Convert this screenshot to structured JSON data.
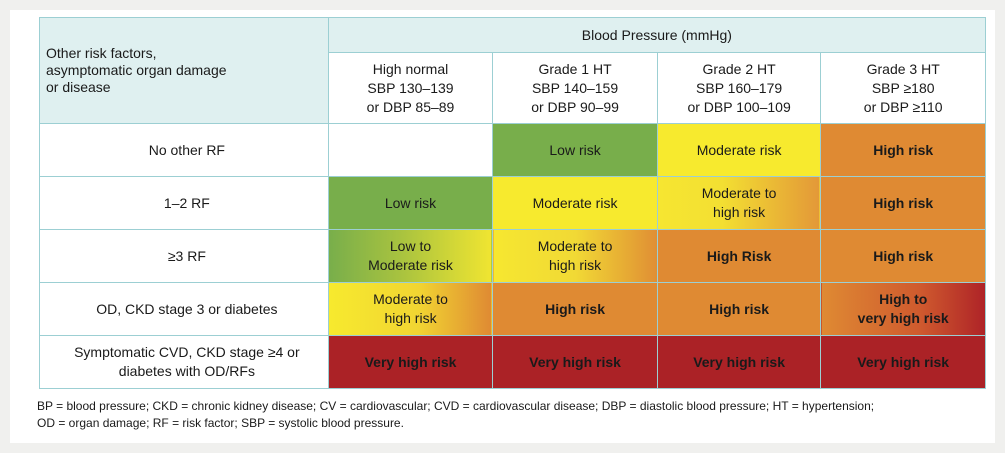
{
  "header": {
    "left_line1": "Other risk factors,",
    "left_line2": "asymptomatic organ damage",
    "left_line3": "or disease",
    "bp_title": "Blood Pressure (mmHg)"
  },
  "grades": [
    {
      "name": "High normal",
      "sbp": "SBP 130–139",
      "dbp": "or DBP 85–89"
    },
    {
      "name": "Grade 1 HT",
      "sbp": "SBP 140–159",
      "dbp": "or DBP 90–99"
    },
    {
      "name": "Grade 2 HT",
      "sbp": "SBP 160–179",
      "dbp": "or DBP 100–109"
    },
    {
      "name": "Grade 3 HT",
      "sbp": "SBP ≥180",
      "dbp": "or DBP ≥110"
    }
  ],
  "rows": [
    {
      "label": "No other RF",
      "cells": [
        {
          "l1": "",
          "l2": ""
        },
        {
          "l1": "Low risk",
          "l2": ""
        },
        {
          "l1": "Moderate risk",
          "l2": ""
        },
        {
          "l1": "High risk",
          "l2": ""
        }
      ]
    },
    {
      "label": "1–2 RF",
      "cells": [
        {
          "l1": "Low risk",
          "l2": ""
        },
        {
          "l1": "Moderate risk",
          "l2": ""
        },
        {
          "l1": "Moderate to",
          "l2": "high risk"
        },
        {
          "l1": "High risk",
          "l2": ""
        }
      ]
    },
    {
      "label": "≥3 RF",
      "cells": [
        {
          "l1": "Low to",
          "l2": "Moderate risk"
        },
        {
          "l1": "Moderate to",
          "l2": "high risk"
        },
        {
          "l1": "High Risk",
          "l2": ""
        },
        {
          "l1": "High risk",
          "l2": ""
        }
      ]
    },
    {
      "label": "OD, CKD stage 3 or diabetes",
      "cells": [
        {
          "l1": "Moderate to",
          "l2": "high risk"
        },
        {
          "l1": "High risk",
          "l2": ""
        },
        {
          "l1": "High risk",
          "l2": ""
        },
        {
          "l1": "High to",
          "l2": "very high risk"
        }
      ]
    },
    {
      "label_l1": "Symptomatic CVD, CKD stage ≥4 or",
      "label_l2": "diabetes with OD/RFs",
      "cells": [
        {
          "l1": "Very high risk",
          "l2": ""
        },
        {
          "l1": "Very high risk",
          "l2": ""
        },
        {
          "l1": "Very high risk",
          "l2": ""
        },
        {
          "l1": "Very high risk",
          "l2": ""
        }
      ]
    }
  ],
  "colors": {
    "low": "#78ae4b",
    "moderate": "#f7ea2e",
    "high": "#df8a33",
    "very_high": "#ab2226",
    "header_bg": "#dff0f0",
    "border": "#9ccfd3"
  },
  "footnote": {
    "line1": "BP = blood pressure; CKD = chronic kidney disease; CV = cardiovascular; CVD = cardiovascular disease; DBP = diastolic blood pressure; HT = hypertension;",
    "line2": "OD = organ damage; RF = risk factor; SBP = systolic blood pressure."
  }
}
